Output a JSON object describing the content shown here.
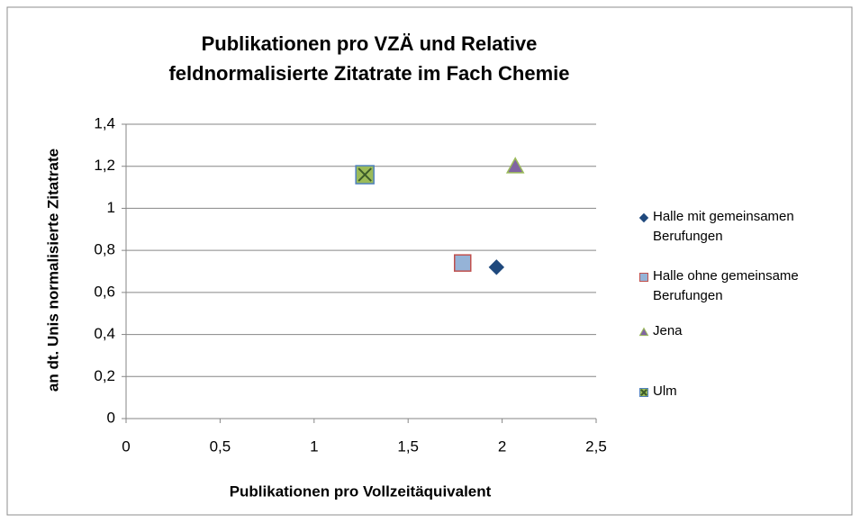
{
  "chart_data": {
    "type": "scatter",
    "title": "Publikationen pro VZÄ und Relative feldnormalisierte Zitatrate im Fach Chemie",
    "xlabel": "Publikationen pro Vollzeitäquivalent",
    "ylabel": "an dt. Unis normalisierte Zitatrate",
    "xlim": [
      0,
      2.5
    ],
    "xticks": [
      0,
      {
        "value": 0.5,
        "label": "0,5"
      },
      1,
      {
        "value": 1.5,
        "label": "1,5"
      },
      2,
      {
        "value": 2.5,
        "label": "2,5"
      }
    ],
    "ylim": [
      0,
      1.4
    ],
    "yticks": [
      0,
      {
        "value": 0.2,
        "label": "0,2"
      },
      {
        "value": 0.4,
        "label": "0,4"
      },
      {
        "value": 0.6,
        "label": "0,6"
      },
      {
        "value": 0.8,
        "label": "0,8"
      },
      1,
      {
        "value": 1.2,
        "label": "1,2"
      },
      {
        "value": 1.4,
        "label": "1,4"
      }
    ],
    "grid": true,
    "legend": "right",
    "series": [
      {
        "name": "Halle mit gemeinsamen Berufungen",
        "color": "#1f497d",
        "edgecolor": "#1f497d",
        "marker": "diamond",
        "x": [
          1.97
        ],
        "values": [
          0.72
        ]
      },
      {
        "name": "Halle ohne gemeinsame Berufungen",
        "color": "#95b3d7",
        "edgecolor": "#c0504d",
        "marker": "square",
        "x": [
          1.79
        ],
        "values": [
          0.74
        ]
      },
      {
        "name": "Jena",
        "color": "#8064a2",
        "edgecolor": "#9bbb59",
        "marker": "triangle",
        "x": [
          2.07
        ],
        "values": [
          1.2
        ]
      },
      {
        "name": "Ulm",
        "color": "#9bbb59",
        "edgecolor": "#4f81bd",
        "marker": "x-square",
        "x": [
          1.27
        ],
        "values": [
          1.16
        ]
      }
    ]
  }
}
